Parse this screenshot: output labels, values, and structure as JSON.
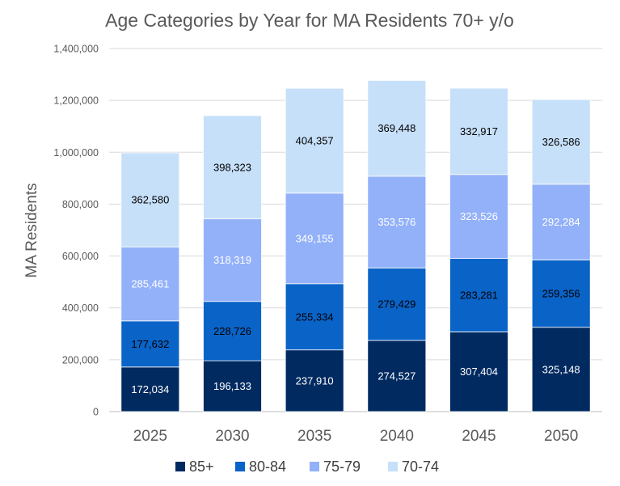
{
  "chart_data": {
    "type": "bar",
    "stacked": true,
    "title": "Age Categories by Year for MA Residents 70+ y/o",
    "xlabel": "",
    "ylabel": "MA Residents",
    "ylim": [
      0,
      1400000
    ],
    "yticks": [
      0,
      200000,
      400000,
      600000,
      800000,
      1000000,
      1200000,
      1400000
    ],
    "ytick_labels": [
      "0",
      "200,000",
      "400,000",
      "600,000",
      "800,000",
      "1,000,000",
      "1,200,000",
      "1,400,000"
    ],
    "grid": true,
    "legend_position": "bottom",
    "categories": [
      "2025",
      "2030",
      "2035",
      "2040",
      "2045",
      "2050"
    ],
    "series": [
      {
        "name": "85+",
        "color": "#002a60",
        "label_color": "#ffffff",
        "values": [
          172034,
          196133,
          237910,
          274527,
          307404,
          325148
        ],
        "labels": [
          "172,034",
          "196,133",
          "237,910",
          "274,527",
          "307,404",
          "325,148"
        ]
      },
      {
        "name": "80-84",
        "color": "#0a63c7",
        "label_color": "#000000",
        "values": [
          177632,
          228726,
          255334,
          279429,
          283281,
          259356
        ],
        "labels": [
          "177,632",
          "228,726",
          "255,334",
          "279,429",
          "283,281",
          "259,356"
        ]
      },
      {
        "name": "75-79",
        "color": "#93b1f9",
        "label_color": "#ffffff",
        "values": [
          285461,
          318319,
          349155,
          353576,
          323526,
          292284
        ],
        "labels": [
          "285,461",
          "318,319",
          "349,155",
          "353,576",
          "323,526",
          "292,284"
        ]
      },
      {
        "name": "70-74",
        "color": "#c7e0fa",
        "label_color": "#000000",
        "values": [
          362580,
          398323,
          404357,
          369448,
          332917,
          326586
        ],
        "labels": [
          "362,580",
          "398,323",
          "404,357",
          "369,448",
          "332,917",
          "326,586"
        ]
      }
    ]
  }
}
